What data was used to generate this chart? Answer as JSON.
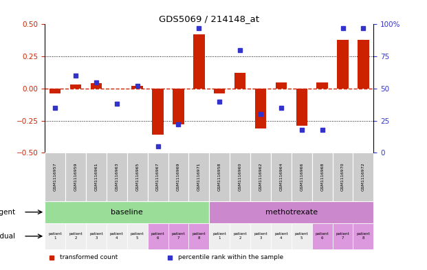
{
  "title": "GDS5069 / 214148_at",
  "samples": [
    "GSM1116957",
    "GSM1116959",
    "GSM1116961",
    "GSM1116963",
    "GSM1116965",
    "GSM1116967",
    "GSM1116969",
    "GSM1116971",
    "GSM1116958",
    "GSM1116960",
    "GSM1116962",
    "GSM1116964",
    "GSM1116966",
    "GSM1116968",
    "GSM1116970",
    "GSM1116972"
  ],
  "transformed_count": [
    -0.04,
    0.03,
    0.04,
    0.0,
    0.02,
    -0.36,
    -0.28,
    0.42,
    -0.04,
    0.12,
    -0.31,
    0.05,
    -0.29,
    0.05,
    0.38,
    0.38
  ],
  "percentile_rank": [
    35,
    60,
    55,
    38,
    52,
    5,
    22,
    97,
    40,
    80,
    30,
    35,
    18,
    18,
    97,
    97
  ],
  "ylim_left": [
    -0.5,
    0.5
  ],
  "ylim_right": [
    0,
    100
  ],
  "yticks_left": [
    -0.5,
    -0.25,
    0.0,
    0.25,
    0.5
  ],
  "yticks_right": [
    0,
    25,
    50,
    75,
    100
  ],
  "hlines_dotted": [
    -0.25,
    0.25
  ],
  "bar_color": "#cc2200",
  "dot_color": "#3333cc",
  "zero_line_color": "#cc2200",
  "agent_groups": [
    {
      "label": "baseline",
      "start": 0,
      "end": 8,
      "color": "#99dd99"
    },
    {
      "label": "methotrexate",
      "start": 8,
      "end": 16,
      "color": "#cc88cc"
    }
  ],
  "patient_labels": [
    "patient\n1",
    "patient\n2",
    "patient\n3",
    "patient\n4",
    "patient\n5",
    "patient\n6",
    "patient\n7",
    "patient\n8",
    "patient\n1",
    "patient\n2",
    "patient\n3",
    "patient\n4",
    "patient\n5",
    "patient\n6",
    "patient\n7",
    "patient\n8"
  ],
  "patient_colors": [
    "#eeeeee",
    "#eeeeee",
    "#eeeeee",
    "#eeeeee",
    "#eeeeee",
    "#dd99dd",
    "#dd99dd",
    "#dd99dd",
    "#eeeeee",
    "#eeeeee",
    "#eeeeee",
    "#eeeeee",
    "#eeeeee",
    "#dd99dd",
    "#dd99dd",
    "#dd99dd"
  ],
  "sample_box_color": "#cccccc",
  "legend_items": [
    {
      "label": "transformed count",
      "color": "#cc2200"
    },
    {
      "label": "percentile rank within the sample",
      "color": "#3333cc"
    }
  ],
  "background_color": "#ffffff"
}
